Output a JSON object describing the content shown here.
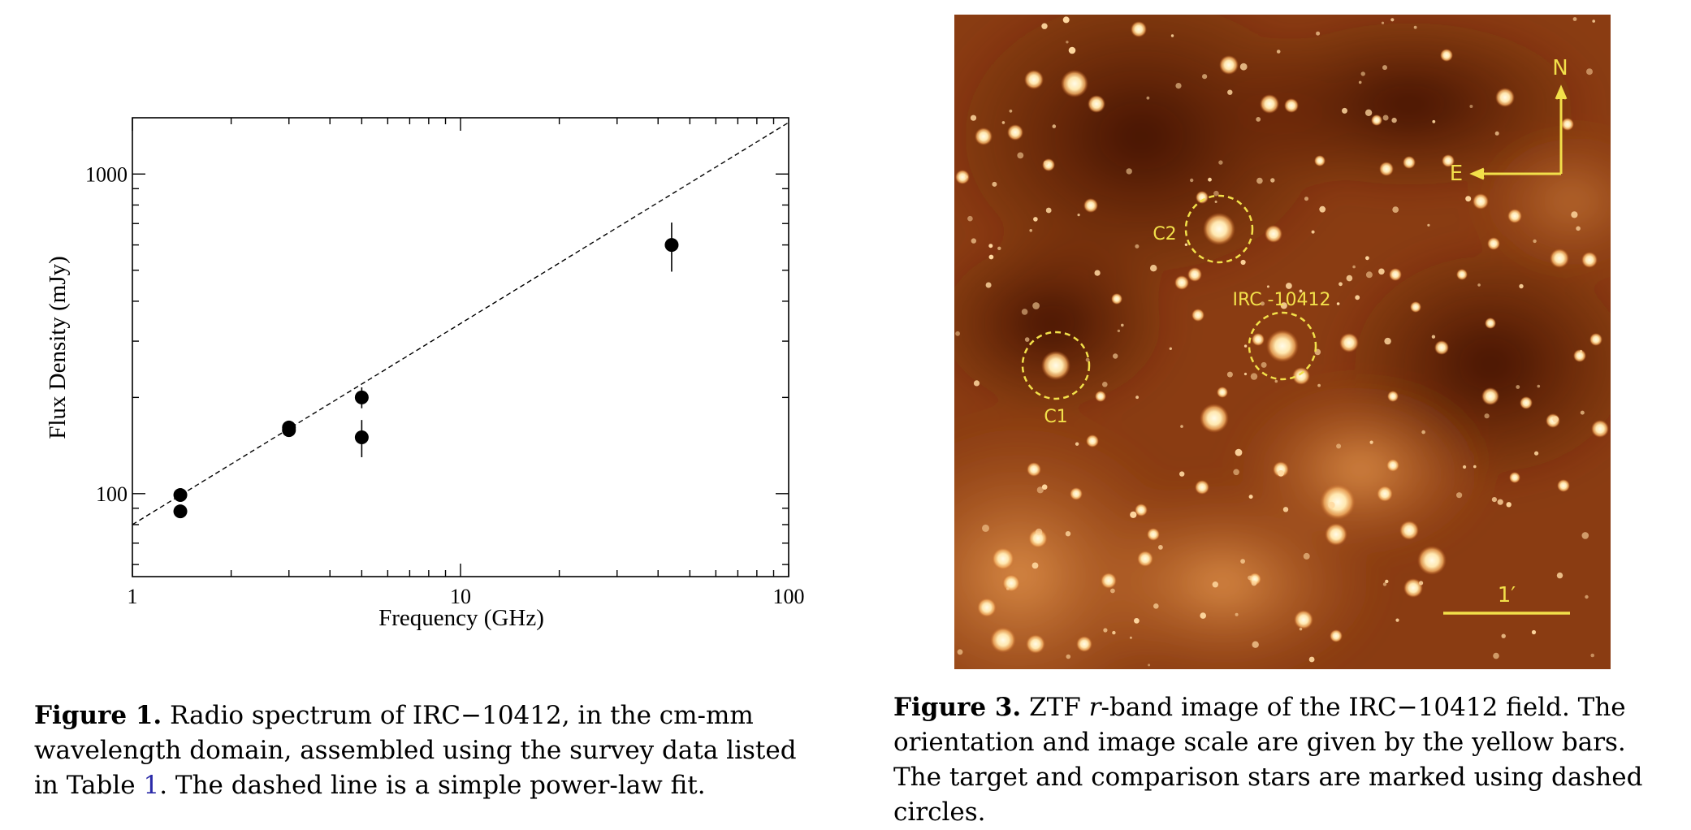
{
  "figure1": {
    "caption": {
      "label": "Figure 1.",
      "text_before_ref": "Radio spectrum of IRC−10412, in the cm-mm wavelength domain, assembled using the survey data listed in Table ",
      "ref": "1",
      "text_after_ref": ". The dashed line is a simple power-law fit."
    }
  },
  "chart_data": {
    "type": "scatter",
    "xlabel": "Frequency (GHz)",
    "ylabel": "Flux Density (mJy)",
    "x_scale": "log",
    "y_scale": "log",
    "xlim": [
      1,
      100
    ],
    "ylim": [
      55,
      1500
    ],
    "x_ticks": [
      "1",
      "10",
      "100"
    ],
    "y_ticks": [
      "100",
      "1000"
    ],
    "grid": false,
    "legend": "none",
    "points": [
      {
        "x": 1.4,
        "y": 99,
        "yerr_low": 3,
        "yerr_high": 3
      },
      {
        "x": 1.4,
        "y": 88,
        "yerr_low": 3,
        "yerr_high": 3
      },
      {
        "x": 3.0,
        "y": 158,
        "yerr_low": 5,
        "yerr_high": 5
      },
      {
        "x": 3.0,
        "y": 161,
        "yerr_low": 5,
        "yerr_high": 5
      },
      {
        "x": 5.0,
        "y": 200,
        "yerr_low": 15,
        "yerr_high": 15
      },
      {
        "x": 5.0,
        "y": 150,
        "yerr_low": 20,
        "yerr_high": 20
      },
      {
        "x": 44.0,
        "y": 600,
        "yerr_low": 105,
        "yerr_high": 105
      }
    ],
    "fit_line": {
      "style": "dashed",
      "x": [
        1,
        100
      ],
      "y": [
        80,
        1450
      ]
    },
    "marker_color": "#000000"
  },
  "figure3": {
    "annotation_color": "#f2e04a",
    "labels": {
      "north": "N",
      "east": "E",
      "c1": "C1",
      "c2": "C2",
      "target": "IRC -10412",
      "scale": "1′"
    },
    "caption": {
      "label": "Figure 3.",
      "text_before_italic": "ZTF ",
      "italic": "r",
      "text_after_italic": "-band image of the IRC−10412 field. The orientation and image scale are given by the yellow bars. The target and comparison stars are marked using dashed circles."
    }
  }
}
